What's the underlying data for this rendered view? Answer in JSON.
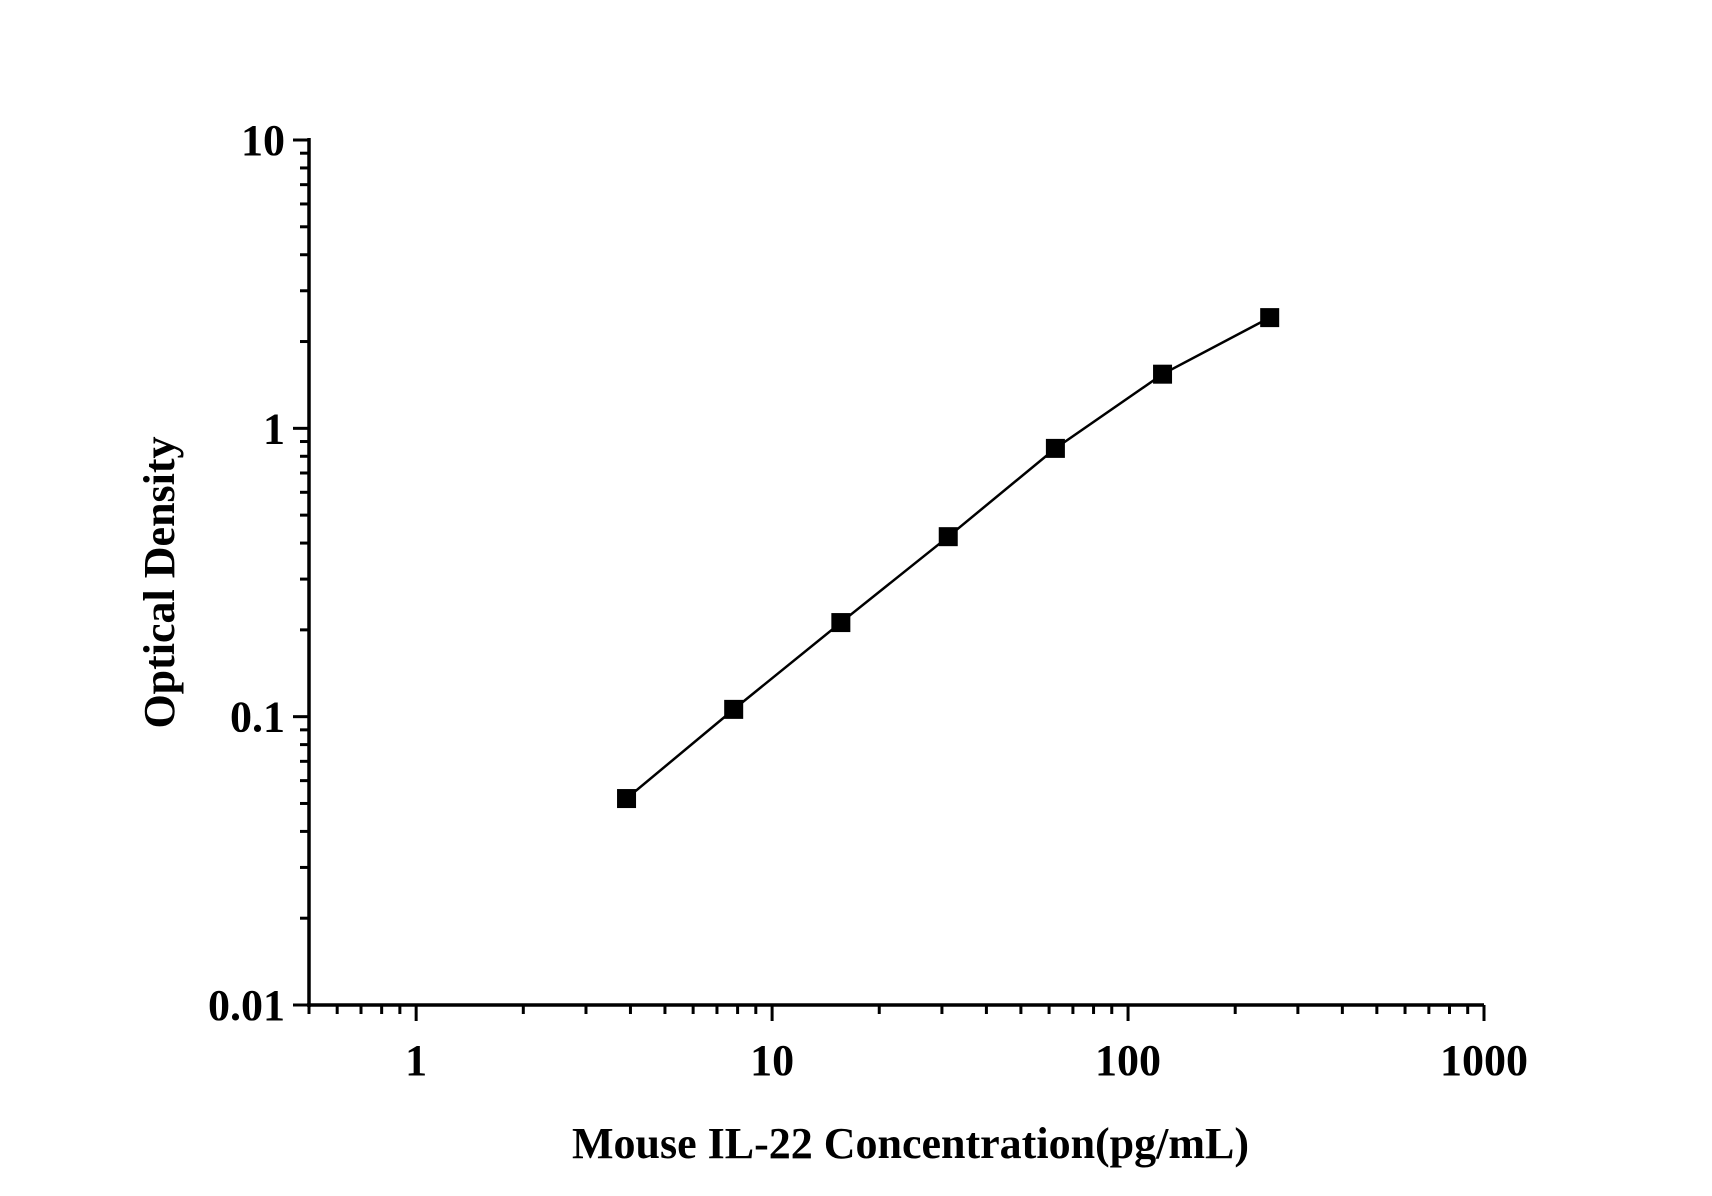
{
  "chart_data": {
    "type": "line",
    "title": "",
    "xlabel": "Mouse IL-22 Concentration(pg/mL)",
    "ylabel": "Optical Density",
    "x_scale": "log",
    "y_scale": "log",
    "xlim": [
      0.5,
      1000
    ],
    "ylim": [
      0.01,
      10
    ],
    "x_ticks": [
      1,
      10,
      100,
      1000
    ],
    "x_tick_labels": [
      "1",
      "10",
      "100",
      "1000"
    ],
    "y_ticks": [
      0.01,
      0.1,
      1,
      10
    ],
    "y_tick_labels": [
      "0.01",
      "0.1",
      "1",
      "10"
    ],
    "grid": false,
    "legend": "none",
    "marker": "square",
    "color": "#000000",
    "series": [
      {
        "x": [
          3.9,
          7.8,
          15.6,
          31.25,
          62.5,
          125,
          250
        ],
        "y": [
          0.052,
          0.106,
          0.212,
          0.421,
          0.852,
          1.541,
          2.421
        ]
      }
    ]
  }
}
